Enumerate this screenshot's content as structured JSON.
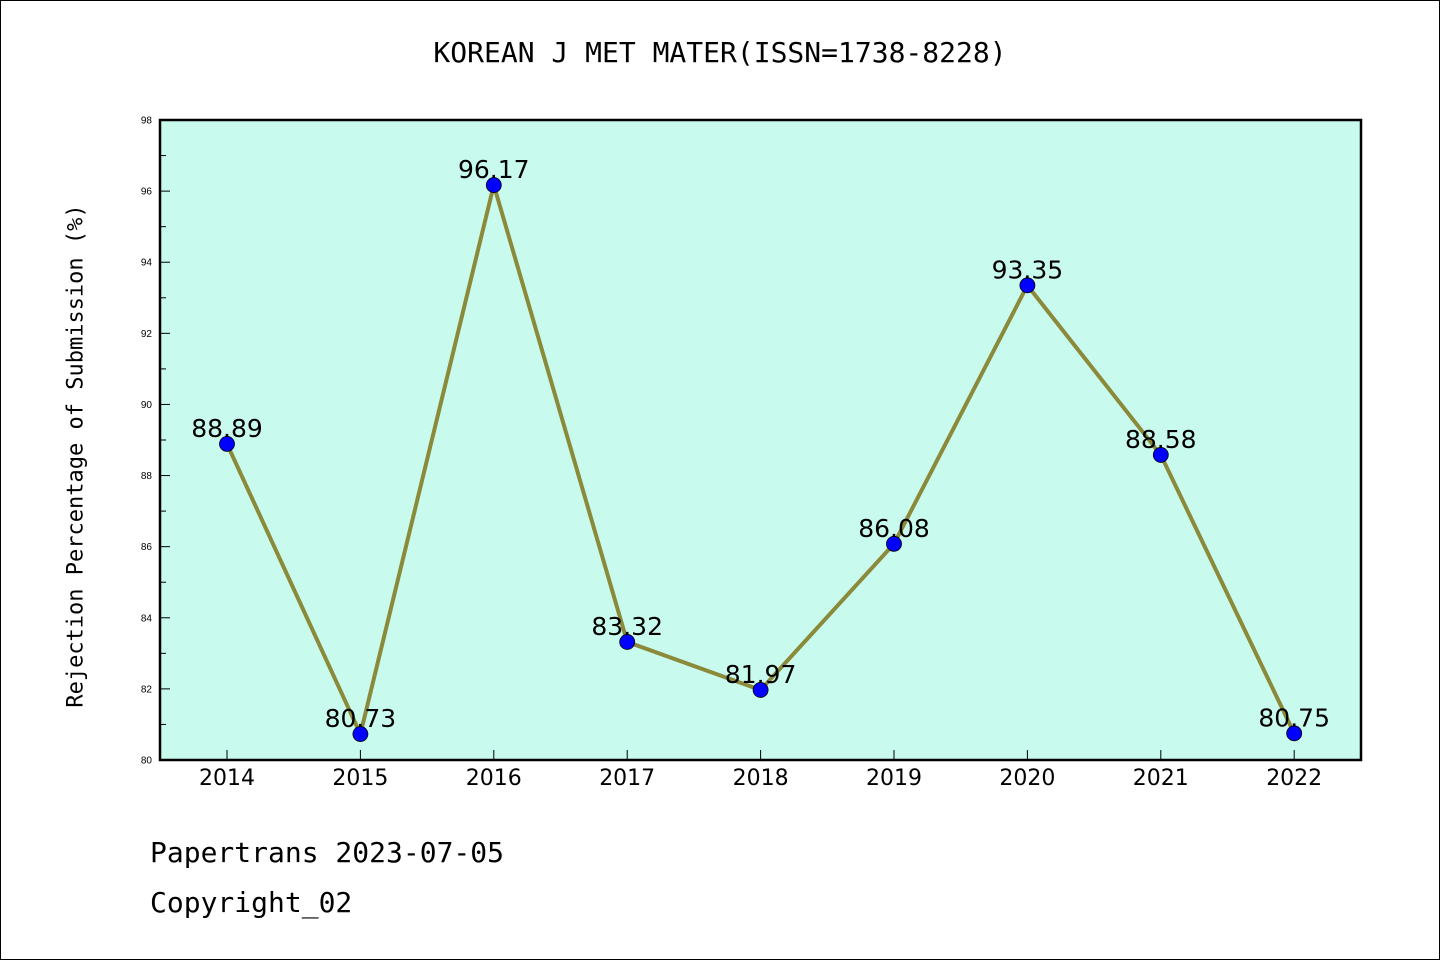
{
  "chart_data": {
    "type": "line",
    "title": "KOREAN J MET MATER(ISSN=1738-8228)",
    "xlabel": "",
    "ylabel": "Rejection Percentage of Submission (%)",
    "categories": [
      "2014",
      "2015",
      "2016",
      "2017",
      "2018",
      "2019",
      "2020",
      "2021",
      "2022"
    ],
    "values": [
      88.89,
      80.73,
      96.17,
      83.32,
      81.97,
      86.08,
      93.35,
      88.58,
      80.75
    ],
    "data_labels": [
      "88.89",
      "80.73",
      "96.17",
      "83.32",
      "81.97",
      "86.08",
      "93.35",
      "88.58",
      "80.75"
    ],
    "ylim": [
      80,
      98
    ],
    "yticks": [
      80,
      82,
      84,
      86,
      88,
      90,
      92,
      94,
      96,
      98
    ],
    "ytick_labels": [
      "80",
      "82",
      "84",
      "86",
      "88",
      "90",
      "92",
      "94",
      "96",
      "98"
    ],
    "grid": false,
    "colors": {
      "plot_background": "#c8fbee",
      "line": "#8b8a3a",
      "marker": "#0000ff"
    }
  },
  "footer": {
    "line1": "Papertrans 2023-07-05",
    "line2": "Copyright_02"
  }
}
